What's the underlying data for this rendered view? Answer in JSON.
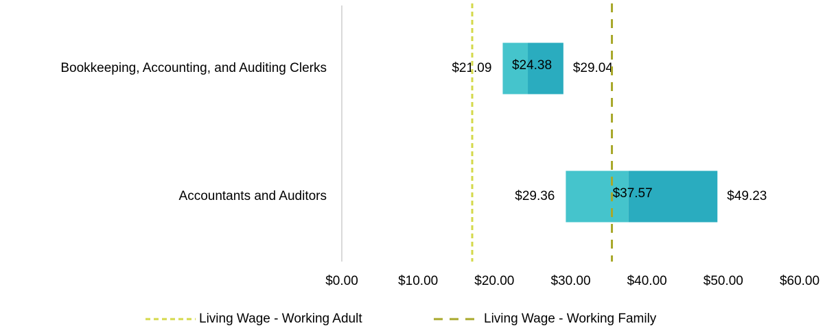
{
  "chart_data": {
    "type": "range_bar",
    "categories": [
      "Bookkeeping, Accounting, and Auditing Clerks",
      "Accountants and Auditors"
    ],
    "low": {
      "values": [
        21.09,
        29.36
      ],
      "value_labels": [
        "$21.09",
        "$29.36"
      ]
    },
    "median": {
      "values": [
        24.38,
        37.57
      ],
      "value_labels": [
        "$24.38",
        "$37.57"
      ]
    },
    "high": {
      "values": [
        29.04,
        49.23
      ],
      "value_labels": [
        "$29.04",
        "$49.23"
      ]
    },
    "colors": [
      "#45c4cc",
      "#2aacbf"
    ],
    "xlim": [
      0,
      60
    ],
    "xticks": [
      {
        "value": 0,
        "label": "$0.00"
      },
      {
        "value": 10,
        "label": "$10.00"
      },
      {
        "value": 20,
        "label": "$20.00"
      },
      {
        "value": 30,
        "label": "$30.00"
      },
      {
        "value": 40,
        "label": "$40.00"
      },
      {
        "value": 50,
        "label": "$50.00"
      },
      {
        "value": 60,
        "label": "$60.00"
      }
    ],
    "reference_lines": [
      {
        "name": "Living Wage - Working Adult",
        "value": 17.09,
        "color": "#d4d94a",
        "dash": "7 5"
      },
      {
        "name": "Living Wage - Working Family",
        "value": 35.4,
        "color": "#a8a82a",
        "dash": "13 10"
      }
    ]
  }
}
